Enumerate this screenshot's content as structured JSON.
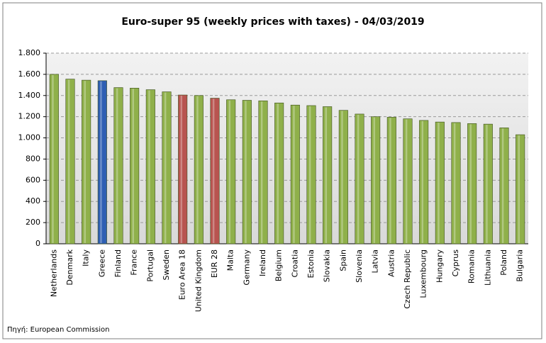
{
  "chart_data": {
    "type": "bar",
    "title": "Euro-super 95 (weekly prices with taxes) - 04/03/2019",
    "source": "Πηγή: European Commission",
    "categories": [
      "Netherlands",
      "Denmark",
      "Italy",
      "Greece",
      "Finland",
      "France",
      "Portugal",
      "Sweden",
      "Euro Area 18",
      "United Kingdom",
      "EUR 28",
      "Malta",
      "Germany",
      "Ireland",
      "Belgium",
      "Croatia",
      "Estonia",
      "Slovakia",
      "Spain",
      "Slovenia",
      "Latvia",
      "Austria",
      "Czech Republic",
      "Luxembourg",
      "Hungary",
      "Cyprus",
      "Romania",
      "Lithuania",
      "Poland",
      "Bulgaria"
    ],
    "values": [
      1600,
      1555,
      1545,
      1540,
      1475,
      1470,
      1455,
      1435,
      1405,
      1400,
      1375,
      1360,
      1355,
      1350,
      1330,
      1310,
      1305,
      1295,
      1260,
      1225,
      1200,
      1195,
      1180,
      1165,
      1150,
      1145,
      1135,
      1130,
      1095,
      1030
    ],
    "colors": [
      "#8fb04a",
      "#8fb04a",
      "#8fb04a",
      "#2f5fb3",
      "#8fb04a",
      "#8fb04a",
      "#8fb04a",
      "#8fb04a",
      "#b85450",
      "#8fb04a",
      "#b85450",
      "#8fb04a",
      "#8fb04a",
      "#8fb04a",
      "#8fb04a",
      "#8fb04a",
      "#8fb04a",
      "#8fb04a",
      "#8fb04a",
      "#8fb04a",
      "#8fb04a",
      "#8fb04a",
      "#8fb04a",
      "#8fb04a",
      "#8fb04a",
      "#8fb04a",
      "#8fb04a",
      "#8fb04a",
      "#8fb04a",
      "#8fb04a"
    ],
    "ylim": [
      0,
      1800
    ],
    "yticks": [
      0,
      200,
      400,
      600,
      800,
      {
        "value": 1000,
        "label": "1.000"
      },
      {
        "value": 1200,
        "label": "1.200"
      },
      {
        "value": 1400,
        "label": "1.400"
      },
      {
        "value": 1600,
        "label": "1.600"
      },
      {
        "value": 1800,
        "label": "1.800"
      }
    ],
    "grid": true
  }
}
